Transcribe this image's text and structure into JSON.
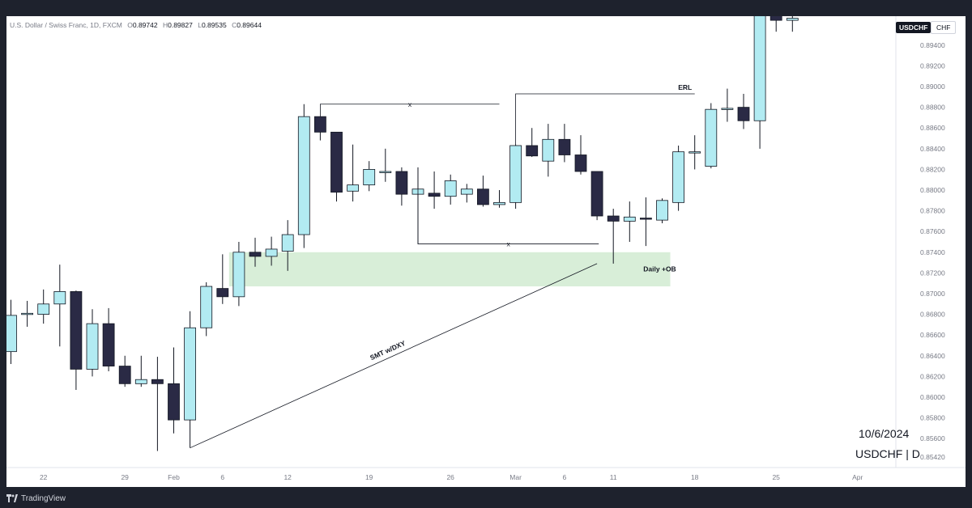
{
  "header": {
    "symbol_text": "U.S. Dollar / Swiss Franc, 1D, FXCM",
    "o_label": "O",
    "o_value": "0.89742",
    "h_label": "H",
    "h_value": "0.89827",
    "l_label": "L",
    "l_value": "0.89535",
    "c_label": "C",
    "c_value": "0.89644"
  },
  "badges": {
    "symbol": "USDCHF",
    "currency": "CHF"
  },
  "watermark": {
    "date": "10/6/2024",
    "symbol": "USDCHF | D"
  },
  "footer": {
    "brand": "TradingView"
  },
  "colors": {
    "up": "#b2ebf2",
    "down": "#2a2a45",
    "wick": "#131722",
    "ob_zone": "#d8eed8",
    "background": "#ffffff",
    "frame": "#1e222d"
  },
  "chart_data": {
    "type": "candlestick",
    "title": "",
    "xlabel": "",
    "ylabel": "",
    "ylim": [
      0.8532,
      0.8968
    ],
    "y_ticks": [
      "0.89400",
      "0.89200",
      "0.89000",
      "0.88800",
      "0.88600",
      "0.88400",
      "0.88200",
      "0.88000",
      "0.87800",
      "0.87600",
      "0.87400",
      "0.87200",
      "0.87000",
      "0.86800",
      "0.86600",
      "0.86400",
      "0.86200",
      "0.86000",
      "0.85800",
      "0.85600",
      "0.85420"
    ],
    "x_ticks": [
      {
        "label": "22",
        "index": 2
      },
      {
        "label": "29",
        "index": 7
      },
      {
        "label": "Feb",
        "index": 10
      },
      {
        "label": "6",
        "index": 13
      },
      {
        "label": "12",
        "index": 17
      },
      {
        "label": "19",
        "index": 22
      },
      {
        "label": "26",
        "index": 27
      },
      {
        "label": "Mar",
        "index": 31
      },
      {
        "label": "6",
        "index": 34
      },
      {
        "label": "11",
        "index": 37
      },
      {
        "label": "18",
        "index": 42
      },
      {
        "label": "25",
        "index": 47
      },
      {
        "label": "Apr",
        "index": 52
      }
    ],
    "candles": [
      {
        "o": 0.8644,
        "h": 0.8694,
        "l": 0.8632,
        "c": 0.8679
      },
      {
        "o": 0.868,
        "h": 0.8693,
        "l": 0.8668,
        "c": 0.8681
      },
      {
        "o": 0.868,
        "h": 0.8704,
        "l": 0.8671,
        "c": 0.869
      },
      {
        "o": 0.869,
        "h": 0.8728,
        "l": 0.8649,
        "c": 0.8702
      },
      {
        "o": 0.8702,
        "h": 0.8703,
        "l": 0.8607,
        "c": 0.8627
      },
      {
        "o": 0.8627,
        "h": 0.8685,
        "l": 0.862,
        "c": 0.8671
      },
      {
        "o": 0.8671,
        "h": 0.8686,
        "l": 0.8625,
        "c": 0.863
      },
      {
        "o": 0.863,
        "h": 0.864,
        "l": 0.861,
        "c": 0.8613
      },
      {
        "o": 0.8613,
        "h": 0.864,
        "l": 0.861,
        "c": 0.8617
      },
      {
        "o": 0.8617,
        "h": 0.8639,
        "l": 0.8548,
        "c": 0.8613
      },
      {
        "o": 0.8613,
        "h": 0.8648,
        "l": 0.8565,
        "c": 0.8578
      },
      {
        "o": 0.8578,
        "h": 0.8683,
        "l": 0.8551,
        "c": 0.8667
      },
      {
        "o": 0.8667,
        "h": 0.8711,
        "l": 0.8659,
        "c": 0.8707
      },
      {
        "o": 0.8705,
        "h": 0.8738,
        "l": 0.869,
        "c": 0.8697
      },
      {
        "o": 0.8697,
        "h": 0.875,
        "l": 0.8688,
        "c": 0.874
      },
      {
        "o": 0.874,
        "h": 0.8754,
        "l": 0.8726,
        "c": 0.8736
      },
      {
        "o": 0.8736,
        "h": 0.8755,
        "l": 0.8727,
        "c": 0.8743
      },
      {
        "o": 0.8741,
        "h": 0.8771,
        "l": 0.8722,
        "c": 0.8757
      },
      {
        "o": 0.8757,
        "h": 0.8883,
        "l": 0.8744,
        "c": 0.8871
      },
      {
        "o": 0.8871,
        "h": 0.8871,
        "l": 0.8848,
        "c": 0.8856
      },
      {
        "o": 0.8856,
        "h": 0.8856,
        "l": 0.8789,
        "c": 0.8798
      },
      {
        "o": 0.8799,
        "h": 0.8844,
        "l": 0.8789,
        "c": 0.8805
      },
      {
        "o": 0.8805,
        "h": 0.8828,
        "l": 0.8799,
        "c": 0.882
      },
      {
        "o": 0.8818,
        "h": 0.884,
        "l": 0.8808,
        "c": 0.8818
      },
      {
        "o": 0.8818,
        "h": 0.8822,
        "l": 0.8785,
        "c": 0.8796
      },
      {
        "o": 0.8796,
        "h": 0.8822,
        "l": 0.8748,
        "c": 0.8801
      },
      {
        "o": 0.8797,
        "h": 0.8818,
        "l": 0.8782,
        "c": 0.8794
      },
      {
        "o": 0.8794,
        "h": 0.8815,
        "l": 0.8786,
        "c": 0.8809
      },
      {
        "o": 0.8796,
        "h": 0.8806,
        "l": 0.8788,
        "c": 0.8801
      },
      {
        "o": 0.8801,
        "h": 0.8814,
        "l": 0.8784,
        "c": 0.8786
      },
      {
        "o": 0.8786,
        "h": 0.88,
        "l": 0.8783,
        "c": 0.8788
      },
      {
        "o": 0.8788,
        "h": 0.8844,
        "l": 0.8782,
        "c": 0.8843
      },
      {
        "o": 0.8843,
        "h": 0.886,
        "l": 0.8832,
        "c": 0.8833
      },
      {
        "o": 0.8828,
        "h": 0.8864,
        "l": 0.8813,
        "c": 0.8849
      },
      {
        "o": 0.8849,
        "h": 0.8864,
        "l": 0.8827,
        "c": 0.8834
      },
      {
        "o": 0.8834,
        "h": 0.8853,
        "l": 0.8815,
        "c": 0.8818
      },
      {
        "o": 0.8818,
        "h": 0.8818,
        "l": 0.8771,
        "c": 0.8775
      },
      {
        "o": 0.8775,
        "h": 0.8782,
        "l": 0.8729,
        "c": 0.877
      },
      {
        "o": 0.877,
        "h": 0.8789,
        "l": 0.875,
        "c": 0.8774
      },
      {
        "o": 0.8773,
        "h": 0.8793,
        "l": 0.8746,
        "c": 0.8772
      },
      {
        "o": 0.8771,
        "h": 0.8792,
        "l": 0.8768,
        "c": 0.879
      },
      {
        "o": 0.8788,
        "h": 0.8843,
        "l": 0.878,
        "c": 0.8837
      },
      {
        "o": 0.8837,
        "h": 0.8853,
        "l": 0.882,
        "c": 0.8837
      },
      {
        "o": 0.8823,
        "h": 0.8884,
        "l": 0.8821,
        "c": 0.8878
      },
      {
        "o": 0.8878,
        "h": 0.8898,
        "l": 0.8866,
        "c": 0.8879
      },
      {
        "o": 0.888,
        "h": 0.8893,
        "l": 0.8859,
        "c": 0.8867
      },
      {
        "o": 0.8867,
        "h": 0.8977,
        "l": 0.884,
        "c": 0.8975
      },
      {
        "o": 0.8974,
        "h": 0.8983,
        "l": 0.8953,
        "c": 0.8964
      },
      {
        "o": 0.8964,
        "h": 0.8976,
        "l": 0.8953,
        "c": 0.8966
      }
    ],
    "annotations": {
      "x_top_label": "x",
      "x_bottom_label": "x",
      "erl_label": "ERL",
      "ob_label": "Daily +OB",
      "smt_label": "SMT w/DXY",
      "ob_zone": {
        "from_index": 13,
        "to_index": 40,
        "top": 0.874,
        "bottom": 0.8707
      },
      "top_x_line": {
        "from_index": 19,
        "to_index": 30,
        "price": 0.8883
      },
      "bottom_x_line": {
        "from_index": 25,
        "to_index": 37,
        "price": 0.8748
      },
      "erl_line": {
        "from_index": 31,
        "to_index": 42,
        "price": 0.8893
      },
      "smt_line": {
        "from_index": 11,
        "from_price": 0.8551,
        "to_index": 36,
        "to_price": 0.8729
      }
    }
  }
}
